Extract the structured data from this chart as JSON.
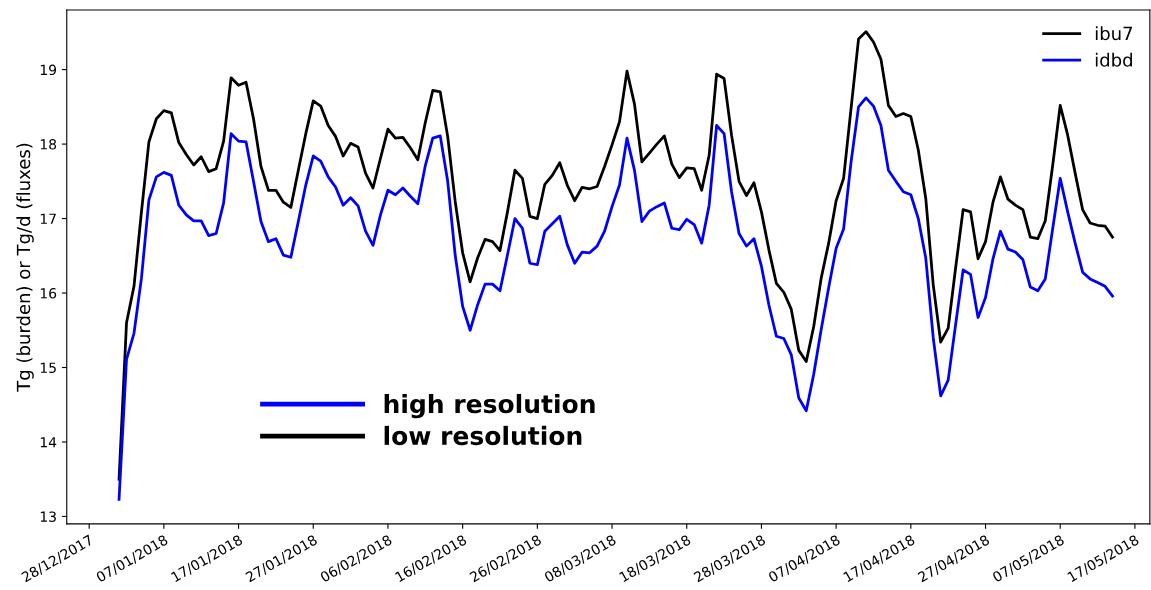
{
  "chart_data": {
    "type": "line",
    "ylabel": "Tg (burden) or Tg/d (fluxes)",
    "x": [
      "2018-01-01",
      "2018-01-02",
      "2018-01-03",
      "2018-01-04",
      "2018-01-05",
      "2018-01-06",
      "2018-01-07",
      "2018-01-08",
      "2018-01-09",
      "2018-01-10",
      "2018-01-11",
      "2018-01-12",
      "2018-01-13",
      "2018-01-14",
      "2018-01-15",
      "2018-01-16",
      "2018-01-17",
      "2018-01-18",
      "2018-01-19",
      "2018-01-20",
      "2018-01-21",
      "2018-01-22",
      "2018-01-23",
      "2018-01-24",
      "2018-01-25",
      "2018-01-26",
      "2018-01-27",
      "2018-01-28",
      "2018-01-29",
      "2018-01-30",
      "2018-01-31",
      "2018-02-01",
      "2018-02-02",
      "2018-02-03",
      "2018-02-04",
      "2018-02-05",
      "2018-02-06",
      "2018-02-07",
      "2018-02-08",
      "2018-02-09",
      "2018-02-10",
      "2018-02-11",
      "2018-02-12",
      "2018-02-13",
      "2018-02-14",
      "2018-02-15",
      "2018-02-16",
      "2018-02-17",
      "2018-02-18",
      "2018-02-19",
      "2018-02-20",
      "2018-02-21",
      "2018-02-22",
      "2018-02-23",
      "2018-02-24",
      "2018-02-25",
      "2018-02-26",
      "2018-02-27",
      "2018-02-28",
      "2018-03-01",
      "2018-03-02",
      "2018-03-03",
      "2018-03-04",
      "2018-03-05",
      "2018-03-06",
      "2018-03-07",
      "2018-03-08",
      "2018-03-09",
      "2018-03-10",
      "2018-03-11",
      "2018-03-12",
      "2018-03-13",
      "2018-03-14",
      "2018-03-15",
      "2018-03-16",
      "2018-03-17",
      "2018-03-18",
      "2018-03-19",
      "2018-03-20",
      "2018-03-21",
      "2018-03-22",
      "2018-03-23",
      "2018-03-24",
      "2018-03-25",
      "2018-03-26",
      "2018-03-27",
      "2018-03-28",
      "2018-03-29",
      "2018-03-30",
      "2018-03-31",
      "2018-04-01",
      "2018-04-02",
      "2018-04-03",
      "2018-04-04",
      "2018-04-05",
      "2018-04-06",
      "2018-04-07",
      "2018-04-08",
      "2018-04-09",
      "2018-04-10",
      "2018-04-11",
      "2018-04-12",
      "2018-04-13",
      "2018-04-14",
      "2018-04-15",
      "2018-04-16",
      "2018-04-17",
      "2018-04-18",
      "2018-04-19",
      "2018-04-20",
      "2018-04-21",
      "2018-04-22",
      "2018-04-23",
      "2018-04-24",
      "2018-04-25",
      "2018-04-26",
      "2018-04-27",
      "2018-04-28",
      "2018-04-29",
      "2018-04-30",
      "2018-05-01",
      "2018-05-02",
      "2018-05-03",
      "2018-05-04",
      "2018-05-05",
      "2018-05-06",
      "2018-05-07",
      "2018-05-08",
      "2018-05-09",
      "2018-05-10",
      "2018-05-11",
      "2018-05-12",
      "2018-05-13",
      "2018-05-14"
    ],
    "series": [
      {
        "name": "ibu7",
        "color": "#000000",
        "values": [
          13.5,
          15.6,
          16.09,
          17.09,
          18.03,
          18.34,
          18.45,
          18.42,
          18.02,
          17.86,
          17.72,
          17.83,
          17.63,
          17.67,
          18.04,
          18.89,
          18.79,
          18.83,
          18.34,
          17.7,
          17.38,
          17.38,
          17.22,
          17.15,
          17.65,
          18.14,
          18.58,
          18.51,
          18.25,
          18.1,
          17.84,
          18.01,
          17.96,
          17.61,
          17.41,
          17.81,
          18.2,
          18.08,
          18.09,
          17.95,
          17.79,
          18.29,
          18.72,
          18.7,
          18.1,
          17.23,
          16.54,
          16.15,
          16.47,
          16.72,
          16.69,
          16.57,
          17.09,
          17.65,
          17.54,
          17.03,
          17.0,
          17.46,
          17.58,
          17.75,
          17.45,
          17.24,
          17.42,
          17.4,
          17.43,
          17.7,
          17.99,
          18.3,
          18.98,
          18.54,
          17.76,
          17.88,
          18.0,
          18.11,
          17.73,
          17.55,
          17.68,
          17.67,
          17.38,
          17.85,
          18.94,
          18.88,
          18.12,
          17.5,
          17.31,
          17.48,
          17.09,
          16.58,
          16.13,
          16.01,
          15.78,
          15.23,
          15.08,
          15.55,
          16.2,
          16.67,
          17.24,
          17.54,
          18.48,
          19.41,
          19.51,
          19.37,
          19.14,
          18.52,
          18.37,
          18.41,
          18.37,
          17.92,
          17.27,
          16.11,
          15.34,
          15.53,
          16.34,
          17.12,
          17.09,
          16.46,
          16.69,
          17.22,
          17.56,
          17.26,
          17.18,
          17.12,
          16.75,
          16.73,
          16.97,
          17.72,
          18.52,
          18.12,
          17.61,
          17.12,
          16.94,
          16.91,
          16.9,
          16.75
        ]
      },
      {
        "name": "idbd",
        "color": "#0000ff",
        "values": [
          13.23,
          15.11,
          15.46,
          16.2,
          17.25,
          17.56,
          17.62,
          17.58,
          17.18,
          17.05,
          16.97,
          16.97,
          16.77,
          16.8,
          17.21,
          18.14,
          18.04,
          18.03,
          17.5,
          16.96,
          16.69,
          16.73,
          16.51,
          16.48,
          16.96,
          17.45,
          17.84,
          17.77,
          17.56,
          17.42,
          17.18,
          17.28,
          17.17,
          16.83,
          16.64,
          17.05,
          17.38,
          17.32,
          17.41,
          17.3,
          17.2,
          17.71,
          18.08,
          18.11,
          17.5,
          16.51,
          15.82,
          15.5,
          15.84,
          16.12,
          16.12,
          16.03,
          16.51,
          17.0,
          16.87,
          16.4,
          16.38,
          16.83,
          16.93,
          17.03,
          16.65,
          16.4,
          16.55,
          16.54,
          16.63,
          16.83,
          17.16,
          17.45,
          18.08,
          17.65,
          16.96,
          17.1,
          17.16,
          17.21,
          16.87,
          16.85,
          16.99,
          16.92,
          16.67,
          17.18,
          18.25,
          18.14,
          17.36,
          16.8,
          16.63,
          16.73,
          16.36,
          15.84,
          15.42,
          15.39,
          15.17,
          14.59,
          14.42,
          14.91,
          15.51,
          16.07,
          16.6,
          16.86,
          17.76,
          18.5,
          18.62,
          18.51,
          18.25,
          17.65,
          17.5,
          17.36,
          17.32,
          17.0,
          16.47,
          15.4,
          14.62,
          14.83,
          15.58,
          16.31,
          16.25,
          15.67,
          15.94,
          16.46,
          16.83,
          16.59,
          16.55,
          16.45,
          16.08,
          16.03,
          16.19,
          16.87,
          17.54,
          17.09,
          16.67,
          16.28,
          16.19,
          16.14,
          16.09,
          15.96
        ]
      }
    ],
    "xlim": [
      "2017-12-25",
      "2018-05-19"
    ],
    "xticks": [
      {
        "value": "2017-12-28",
        "label": "28/12/2017"
      },
      {
        "value": "2018-01-07",
        "label": "07/01/2018"
      },
      {
        "value": "2018-01-17",
        "label": "17/01/2018"
      },
      {
        "value": "2018-01-27",
        "label": "27/01/2018"
      },
      {
        "value": "2018-02-06",
        "label": "06/02/2018"
      },
      {
        "value": "2018-02-16",
        "label": "16/02/2018"
      },
      {
        "value": "2018-02-26",
        "label": "26/02/2018"
      },
      {
        "value": "2018-03-08",
        "label": "08/03/2018"
      },
      {
        "value": "2018-03-18",
        "label": "18/03/2018"
      },
      {
        "value": "2018-03-28",
        "label": "28/03/2018"
      },
      {
        "value": "2018-04-07",
        "label": "07/04/2018"
      },
      {
        "value": "2018-04-17",
        "label": "17/04/2018"
      },
      {
        "value": "2018-04-27",
        "label": "27/04/2018"
      },
      {
        "value": "2018-05-07",
        "label": "07/05/2018"
      },
      {
        "value": "2018-05-17",
        "label": "17/05/2018"
      }
    ],
    "ylim": [
      12.9,
      19.8
    ],
    "yticks": [
      13,
      14,
      15,
      16,
      17,
      18,
      19
    ],
    "annotations": [
      "high resolution",
      "low resolution"
    ],
    "legend": "top right",
    "grid": false,
    "marker": "none",
    "line_style": "solid"
  }
}
